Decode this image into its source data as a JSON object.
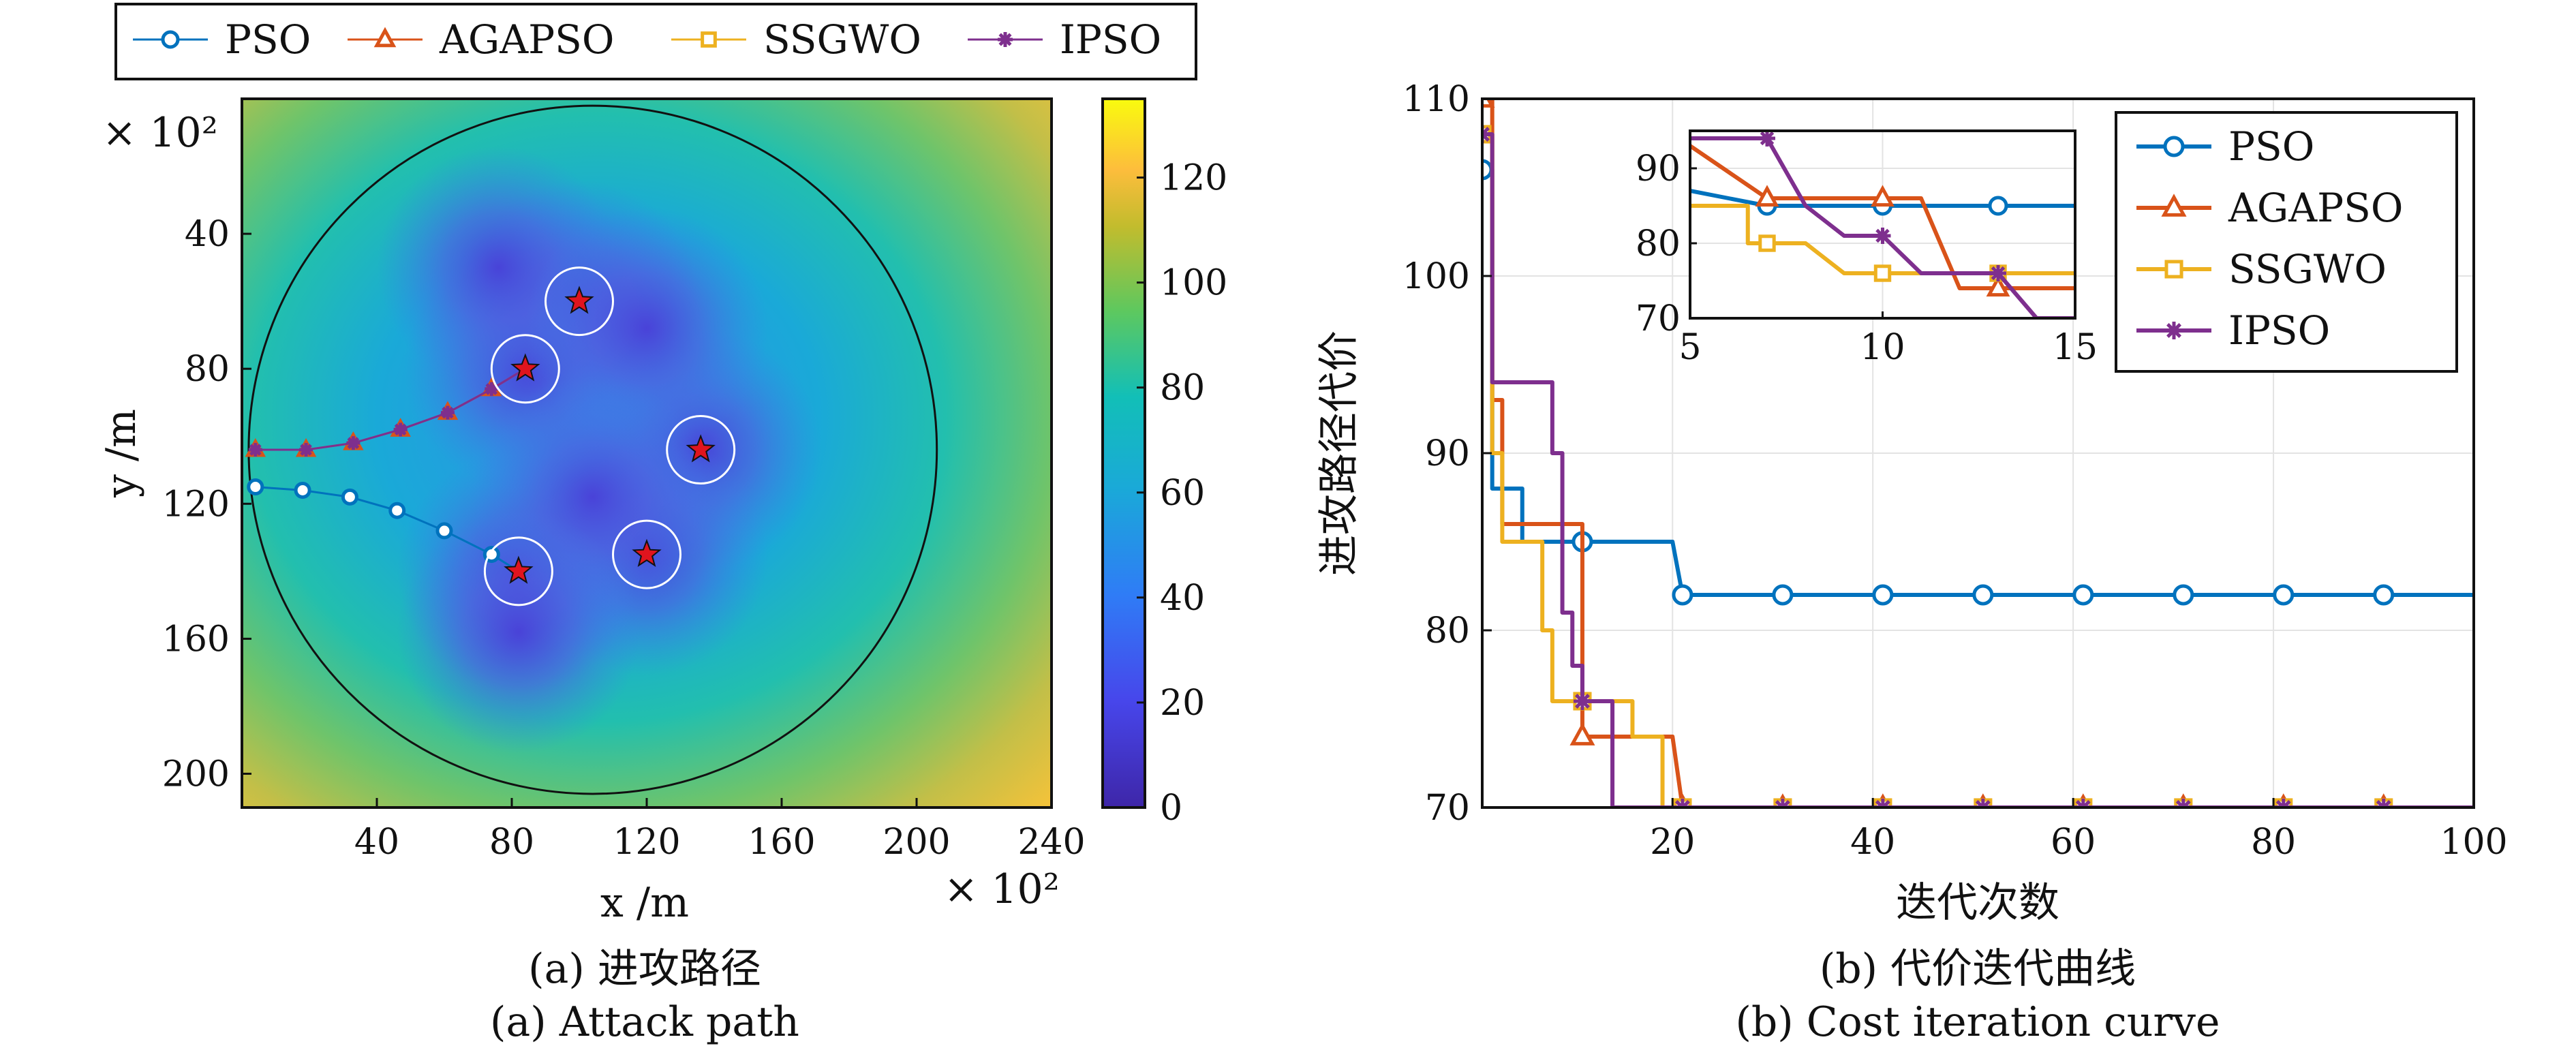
{
  "legend_top": [
    "PSO",
    "AGAPSO",
    "SSGWO",
    "IPSO"
  ],
  "captions": {
    "a_cn": "(a) 进攻路径",
    "a_en": "(a) Attack path",
    "b_cn": "(b) 代价迭代曲线",
    "b_en": "(b) Cost iteration curve"
  },
  "colors": {
    "PSO": "#0072BD",
    "AGAPSO": "#D95319",
    "SSGWO": "#EDB120",
    "IPSO": "#7E2F8E",
    "target_star": "#E0141E"
  },
  "chart_data": [
    {
      "type": "heatmap",
      "xlabel": "x /m",
      "ylabel": "y /m",
      "x_multiplier": "× 10²",
      "y_multiplier": "× 10²",
      "xlim": [
        0,
        240
      ],
      "ylim": [
        210,
        0
      ],
      "xticks": [
        40,
        80,
        120,
        160,
        200,
        240
      ],
      "yticks": [
        40,
        80,
        120,
        160,
        200
      ],
      "colorbar": {
        "min": 0,
        "max": 135,
        "ticks": [
          0,
          20,
          40,
          60,
          80,
          100,
          120
        ]
      },
      "circle": {
        "cx": 104,
        "cy": 104,
        "r": 102
      },
      "targets": [
        {
          "x": 100,
          "y": 60
        },
        {
          "x": 84,
          "y": 80
        },
        {
          "x": 136,
          "y": 104
        },
        {
          "x": 120,
          "y": 135
        },
        {
          "x": 82,
          "y": 140
        }
      ],
      "target_ring_radius": 10,
      "series": [
        {
          "name": "PSO",
          "x": [
            4,
            18,
            32,
            46,
            60,
            74,
            82
          ],
          "y": [
            115,
            116,
            118,
            122,
            128,
            135,
            140
          ]
        },
        {
          "name": "AGAPSO",
          "x": [
            4,
            19,
            33,
            47,
            61,
            74,
            84
          ],
          "y": [
            104,
            104,
            102,
            98,
            93,
            86,
            80
          ]
        },
        {
          "name": "IPSO",
          "x": [
            4,
            19,
            33,
            47,
            61,
            74,
            84
          ],
          "y": [
            104,
            104,
            102,
            98,
            93,
            86,
            80
          ]
        }
      ]
    },
    {
      "type": "line",
      "xlabel": "迭代次数",
      "ylabel": "进攻路径代价",
      "xlim": [
        1,
        100
      ],
      "ylim": [
        70,
        110
      ],
      "xticks": [
        20,
        40,
        60,
        80,
        100
      ],
      "yticks": [
        70,
        80,
        90,
        100,
        110
      ],
      "grid": true,
      "legend": "top-right",
      "series": [
        {
          "name": "PSO",
          "marker": "circle",
          "markevery": [
            1,
            11,
            21,
            31,
            41,
            51,
            61,
            71,
            81,
            91
          ],
          "x": [
            1,
            2,
            2,
            5,
            5,
            11,
            11,
            20,
            21,
            100
          ],
          "y": [
            106,
            106,
            88,
            88,
            85,
            85,
            85,
            85,
            82,
            82
          ]
        },
        {
          "name": "AGAPSO",
          "marker": "triangle",
          "markevery": [
            1,
            11,
            21,
            31,
            41,
            51,
            61,
            71,
            81,
            91
          ],
          "x": [
            1,
            2,
            2,
            3,
            3,
            6,
            6,
            11,
            11,
            12,
            12,
            16,
            16,
            20,
            21,
            100
          ],
          "y": [
            110,
            110,
            93,
            93,
            86,
            86,
            86,
            86,
            74,
            74,
            74,
            74,
            74,
            74,
            70,
            70
          ]
        },
        {
          "name": "SSGWO",
          "marker": "square",
          "markevery": [
            1,
            11,
            21,
            31,
            41,
            51,
            61,
            71,
            81,
            91
          ],
          "x": [
            1,
            2,
            2,
            3,
            3,
            4,
            4,
            7,
            7,
            8,
            8,
            9,
            9,
            12,
            12,
            16,
            16,
            19,
            19,
            20,
            21,
            100
          ],
          "y": [
            108,
            108,
            90,
            90,
            85,
            85,
            85,
            85,
            80,
            80,
            76,
            76,
            76,
            76,
            76,
            76,
            74,
            74,
            70,
            70,
            70,
            70
          ]
        },
        {
          "name": "IPSO",
          "marker": "asterisk",
          "markevery": [
            1,
            11,
            21,
            31,
            41,
            51,
            61,
            71,
            81,
            91
          ],
          "x": [
            1,
            2,
            2,
            8,
            8,
            9,
            9,
            10,
            10,
            11,
            11,
            14,
            14,
            100
          ],
          "y": [
            108,
            108,
            94,
            94,
            90,
            90,
            81,
            81,
            78,
            78,
            76,
            76,
            70,
            70
          ]
        }
      ],
      "inset": {
        "xlim": [
          5,
          15
        ],
        "ylim": [
          70,
          95
        ],
        "xticks": [
          5,
          10,
          15
        ],
        "yticks": [
          70,
          80,
          90
        ],
        "grid": true,
        "series": [
          {
            "name": "PSO",
            "marker": "circle",
            "markevery": [
              7,
              10,
              13
            ],
            "x": [
              5,
              7,
              15
            ],
            "y": [
              87,
              85,
              85
            ]
          },
          {
            "name": "AGAPSO",
            "marker": "triangle",
            "markevery": [
              7,
              10,
              13
            ],
            "x": [
              5,
              7,
              7,
              11,
              12,
              12,
              15
            ],
            "y": [
              93,
              86,
              86,
              86,
              74,
              74,
              74
            ]
          },
          {
            "name": "SSGWO",
            "marker": "square",
            "markevery": [
              7,
              10,
              13
            ],
            "x": [
              5,
              6.5,
              6.5,
              8,
              9,
              10,
              10,
              15
            ],
            "y": [
              85,
              85,
              80,
              80,
              76,
              76,
              76,
              76
            ]
          },
          {
            "name": "IPSO",
            "marker": "asterisk",
            "markevery": [
              7,
              10,
              13
            ],
            "x": [
              5,
              7,
              8,
              9,
              10,
              11,
              13,
              14,
              15
            ],
            "y": [
              94,
              94,
              85,
              81,
              81,
              76,
              76,
              70,
              70
            ]
          }
        ]
      }
    }
  ]
}
